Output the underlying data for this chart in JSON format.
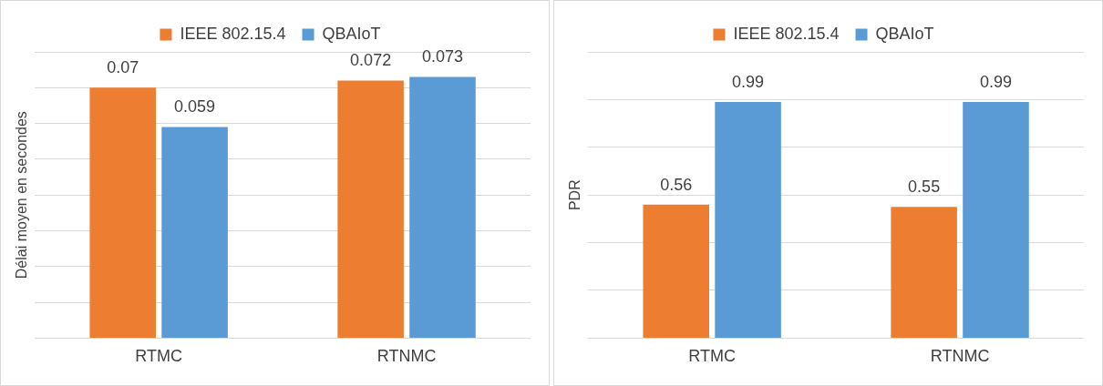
{
  "chart_data": [
    {
      "type": "bar",
      "categories": [
        "RTMC",
        "RTNMC"
      ],
      "ylabel": "Délai moyen en secondes",
      "series": [
        {
          "name": "IEEE 802.15.4",
          "color": "#ed7d31",
          "values": [
            0.07,
            0.072
          ]
        },
        {
          "name": "QBAIoT",
          "color": "#5b9bd5",
          "values": [
            0.059,
            0.073
          ]
        }
      ],
      "ylim": [
        0,
        0.08
      ],
      "yticks": [
        {
          "value": 0,
          "label": null
        },
        {
          "value": 0.01,
          "label": null
        },
        {
          "value": 0.02,
          "label": null
        },
        {
          "value": 0.03,
          "label": null
        },
        {
          "value": 0.04,
          "label": null
        },
        {
          "value": 0.05,
          "label": null
        },
        {
          "value": 0.06,
          "label": null
        },
        {
          "value": 0.07,
          "label": null
        },
        {
          "value": 0.08,
          "label": null
        }
      ],
      "grid": "y",
      "legend": "top",
      "tick_labels": "x",
      "data_labels": true
    },
    {
      "type": "bar",
      "categories": [
        "RTMC",
        "RTNMC"
      ],
      "ylabel": "PDR",
      "series": [
        {
          "name": "IEEE 802.15.4",
          "color": "#ed7d31",
          "values": [
            0.56,
            0.55
          ]
        },
        {
          "name": "QBAIoT",
          "color": "#5b9bd5",
          "values": [
            0.99,
            0.99
          ]
        }
      ],
      "ylim": [
        0,
        1.2
      ],
      "yticks": [
        {
          "value": 0,
          "label": null
        },
        {
          "value": 0.2,
          "label": null
        },
        {
          "value": 0.4,
          "label": null
        },
        {
          "value": 0.6,
          "label": null
        },
        {
          "value": 0.8,
          "label": null
        },
        {
          "value": 1,
          "label": null
        },
        {
          "value": 1.2,
          "label": null
        }
      ],
      "grid": "y",
      "legend": "top",
      "tick_labels": "x",
      "data_labels": true
    }
  ]
}
